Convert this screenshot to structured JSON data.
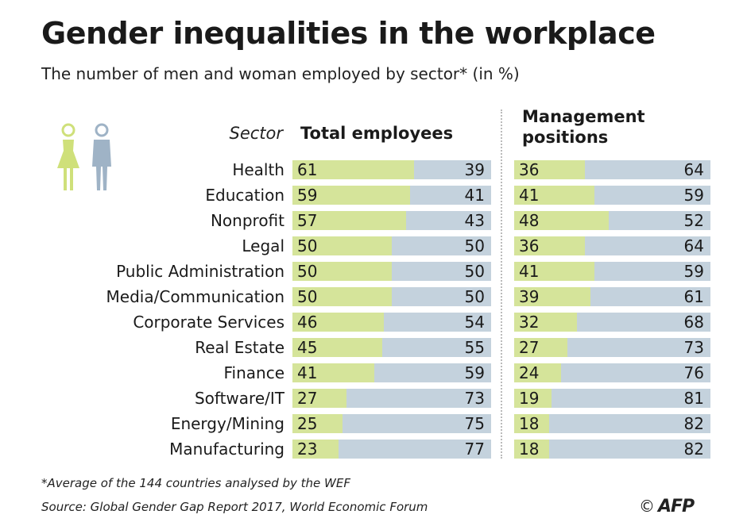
{
  "header": {
    "title": "Gender inequalities in the workplace",
    "subtitle": "The number of men and woman employed by sector* (in %)"
  },
  "legend": {
    "woman_icon": "woman-icon",
    "man_icon": "man-icon"
  },
  "colors": {
    "women": "#d5e49a",
    "men": "#c4d2dd",
    "woman_icon": "#cfe07a",
    "man_icon": "#9fb3c6"
  },
  "columns": {
    "sector_header": "Sector",
    "total_header": "Total employees",
    "management_header": "Management positions"
  },
  "chart_data": {
    "type": "bar",
    "title": "Gender inequalities in the workplace",
    "subtitle": "The number of men and woman employed by sector* (in %)",
    "orientation": "horizontal-stacked-100",
    "categories": [
      "Health",
      "Education",
      "Nonprofit",
      "Legal",
      "Public Administration",
      "Media/Communication",
      "Corporate Services",
      "Real Estate",
      "Finance",
      "Software/IT",
      "Energy/Mining",
      "Manufacturing"
    ],
    "panels": [
      {
        "name": "Total employees",
        "series": [
          {
            "name": "Women",
            "values": [
              61,
              59,
              57,
              50,
              50,
              50,
              46,
              45,
              41,
              27,
              25,
              23
            ]
          },
          {
            "name": "Men",
            "values": [
              39,
              41,
              43,
              50,
              50,
              50,
              54,
              55,
              59,
              73,
              75,
              77
            ]
          }
        ]
      },
      {
        "name": "Management positions",
        "series": [
          {
            "name": "Women",
            "values": [
              36,
              41,
              48,
              36,
              41,
              39,
              32,
              27,
              24,
              19,
              18,
              18
            ]
          },
          {
            "name": "Men",
            "values": [
              64,
              59,
              52,
              64,
              59,
              61,
              68,
              73,
              76,
              81,
              82,
              82
            ]
          }
        ]
      }
    ],
    "xlim": [
      0,
      100
    ],
    "unit": "%"
  },
  "footer": {
    "footnote": "*Average of the 144 countries analysed by the WEF",
    "source": "Source: Global Gender Gap Report 2017, World Economic Forum",
    "copyright_symbol": "©",
    "credit": "AFP"
  }
}
